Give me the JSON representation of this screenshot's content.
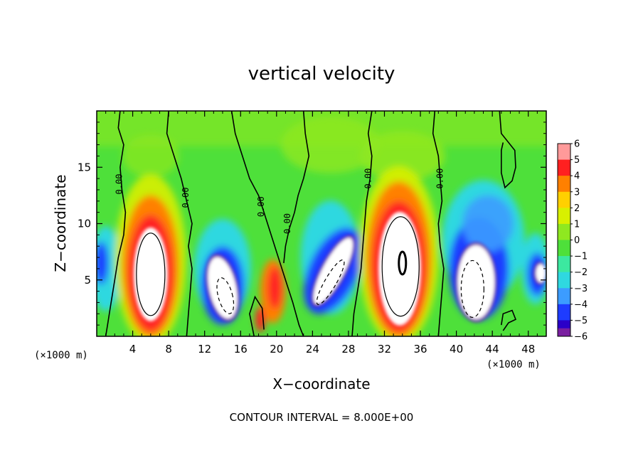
{
  "chart_data": {
    "type": "heatmap",
    "title": "vertical velocity",
    "xlabel": "X−coordinate",
    "ylabel": "Z−coordinate",
    "x_unit": "(×1000 m)",
    "y_unit": "(×1000 m)",
    "xlim": [
      0,
      50
    ],
    "ylim": [
      0,
      20
    ],
    "x_ticks": [
      4,
      8,
      12,
      16,
      20,
      24,
      28,
      32,
      36,
      40,
      44,
      48
    ],
    "y_ticks": [
      5,
      10,
      15
    ],
    "colorbar": {
      "ticks": [
        6,
        5,
        4,
        3,
        2,
        1,
        0,
        -1,
        -2,
        -3,
        -4,
        -5,
        -6
      ],
      "tick_labels": [
        "6",
        "5",
        "4",
        "3",
        "2",
        "1",
        "0",
        "−1",
        "−2",
        "−3",
        "−4",
        "−5",
        "−6"
      ],
      "range": [
        -6,
        6
      ]
    },
    "colors": {
      "neg6": "#7a1fa0",
      "neg5": "#2b00c8",
      "neg4": "#1e3cff",
      "neg3": "#3c9cff",
      "neg2": "#2fd8e0",
      "neg1": "#3ce8a0",
      "zero": "#4ee03a",
      "pos1": "#8fe820",
      "pos2": "#d8f000",
      "pos3": "#ffd000",
      "pos4": "#ff8000",
      "pos5": "#ff2020",
      "pos6": "#ff9a9a",
      "saturated": "#ffffff"
    },
    "updraft_cores": [
      {
        "x_range": [
          3.5,
          8.5
        ],
        "z_range": [
          1.5,
          11.0
        ],
        "w_max": "> 6"
      },
      {
        "x_range": [
          30.5,
          37.0
        ],
        "z_range": [
          1.0,
          13.0
        ],
        "w_max": "> 6"
      },
      {
        "x_range": [
          17.5,
          21.5
        ],
        "z_range": [
          0.5,
          7.0
        ],
        "w_max": "5"
      }
    ],
    "downdraft_cores": [
      {
        "x_range": [
          11.5,
          16.5
        ],
        "z_range": [
          0.5,
          7.5
        ],
        "w_min": "< -6"
      },
      {
        "x_range": [
          23.5,
          29.0
        ],
        "z_range": [
          1.0,
          10.5
        ],
        "w_min": "< -6"
      },
      {
        "x_range": [
          39.0,
          45.5
        ],
        "z_range": [
          0.5,
          8.5
        ],
        "w_min": "< -6"
      },
      {
        "x_range": [
          47.5,
          50.0
        ],
        "z_range": [
          4.0,
          7.0
        ],
        "w_min": "< -6"
      }
    ],
    "contour_labels": [
      {
        "text": "0.00",
        "x": 2.8,
        "z": 13.5
      },
      {
        "text": "0.00",
        "x": 10.2,
        "z": 12.3
      },
      {
        "text": "0.00",
        "x": 18.6,
        "z": 11.5
      },
      {
        "text": "0.00",
        "x": 21.5,
        "z": 10.0
      },
      {
        "text": "0.00",
        "x": 30.5,
        "z": 14.0
      },
      {
        "text": "0.00",
        "x": 38.5,
        "z": 14.0
      }
    ],
    "contour_interval_text": "CONTOUR INTERVAL = 8.000E+00"
  }
}
